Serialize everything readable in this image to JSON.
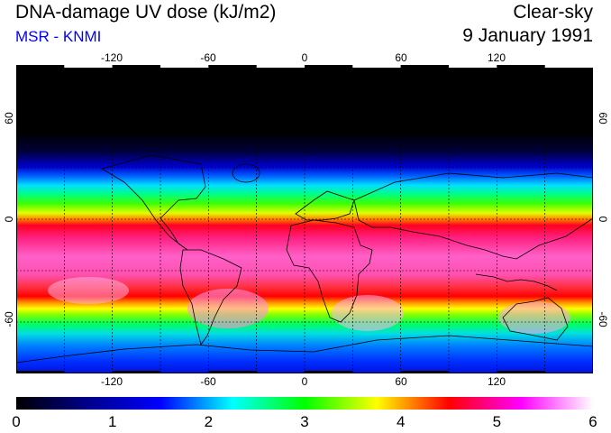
{
  "header": {
    "title": "DNA-damage UV dose (kJ/m2)",
    "subtitle": "MSR - KNMI",
    "condition": "Clear-sky",
    "date": "9 January 1991"
  },
  "colors": {
    "subtitle": "#0000ff",
    "frame": "#000000",
    "grid": "#000000",
    "coast": "#000000"
  },
  "map": {
    "projection": "equirectangular",
    "lon_range": [
      -180,
      180
    ],
    "lat_range": [
      -90,
      90
    ],
    "lon_ticks": [
      "-120",
      "-60",
      "0",
      "60",
      "120"
    ],
    "lat_ticks": [
      "60",
      "0",
      "-60"
    ],
    "field_description": "zonal UV dose, maximum in southern (summer) hemisphere, ~0 in northern polar night"
  },
  "colorbar": {
    "min": 0,
    "max": 6,
    "labels": [
      "0",
      "1",
      "2",
      "3",
      "4",
      "5",
      "6"
    ],
    "stops": [
      "#000000",
      "#00008b",
      "#0000ff",
      "#00ffff",
      "#00ff00",
      "#ffff00",
      "#ff0000",
      "#ff00ff",
      "#ffffff"
    ]
  }
}
